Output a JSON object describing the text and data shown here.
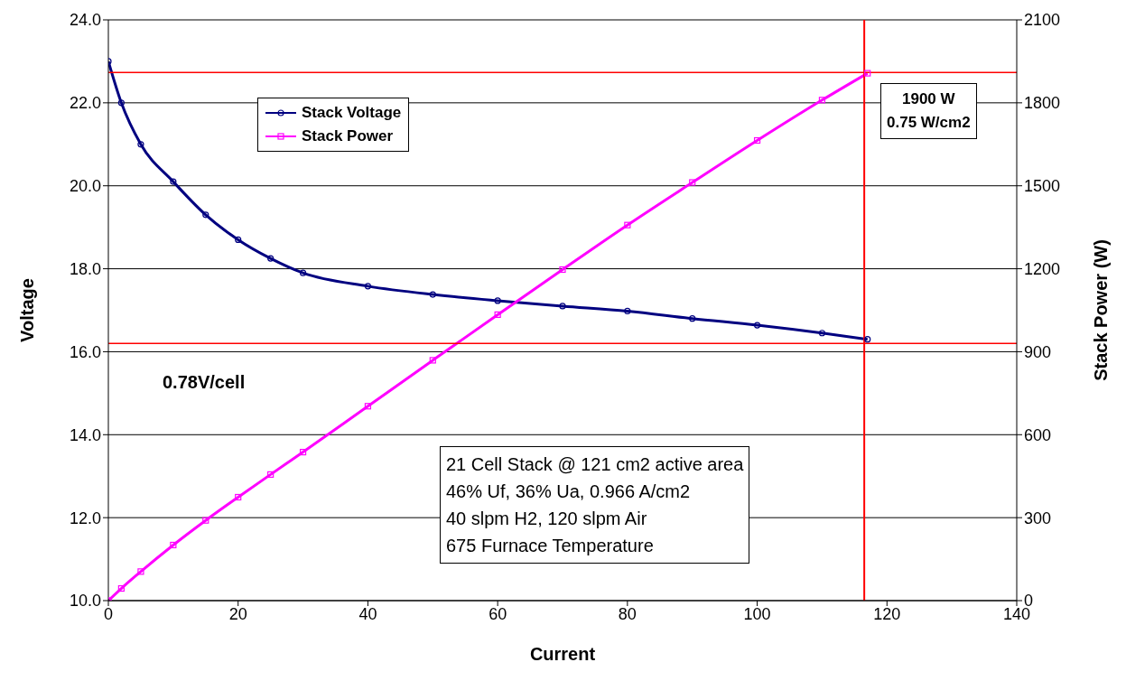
{
  "chart_data": {
    "type": "line",
    "xlabel": "Current",
    "ylabel": "Voltage",
    "y2label": "Stack Power (W)",
    "x": [
      0,
      2,
      5,
      10,
      15,
      20,
      25,
      30,
      40,
      50,
      60,
      70,
      80,
      90,
      100,
      110,
      117
    ],
    "series": [
      {
        "name": "Stack Voltage",
        "color": "#000080",
        "marker": "circle",
        "values": [
          23.0,
          22.0,
          21.0,
          20.1,
          19.3,
          18.7,
          18.25,
          17.9,
          17.58,
          17.38,
          17.23,
          17.1,
          16.98,
          16.8,
          16.64,
          16.45,
          16.3
        ]
      },
      {
        "name": "Stack Power",
        "color": "#ff00ff",
        "marker": "square",
        "axis": "y2",
        "values": [
          0,
          44,
          105,
          201,
          290,
          374,
          456,
          537,
          703,
          869,
          1034,
          1197,
          1358,
          1512,
          1664,
          1810,
          1907
        ]
      }
    ],
    "xlim": [
      0,
      140
    ],
    "xticks": [
      0,
      20,
      40,
      60,
      80,
      100,
      120,
      140
    ],
    "ylim": [
      10,
      24
    ],
    "yticks": [
      {
        "value": 10,
        "label": "10.0"
      },
      {
        "value": 12,
        "label": "12.0"
      },
      {
        "value": 14,
        "label": "14.0"
      },
      {
        "value": 16,
        "label": "16.0"
      },
      {
        "value": 18,
        "label": "18.0"
      },
      {
        "value": 20,
        "label": "20.0"
      },
      {
        "value": 22,
        "label": "22.0"
      },
      {
        "value": 24,
        "label": "24.0"
      }
    ],
    "y2lim": [
      0,
      2100
    ],
    "y2ticks": [
      0,
      300,
      600,
      900,
      1200,
      1500,
      1800,
      2100
    ],
    "ref_lines": [
      {
        "axis": "x",
        "value": 116.5,
        "color": "#ff0000"
      },
      {
        "axis": "y",
        "value": 16.2,
        "color": "#ff0000"
      },
      {
        "axis": "y2",
        "value": 1910,
        "color": "#ff0000"
      }
    ],
    "annotations": [
      "1900 W\n0.75 W/cm2",
      "0.78V/cell",
      "21 Cell Stack @ 121 cm2 active area\n46% Uf, 36% Ua, 0.966 A/cm2\n40 slpm H2, 120 slpm Air\n675 Furnace Temperature"
    ],
    "grid": "y",
    "legend": "top left",
    "line_style": "solid"
  }
}
